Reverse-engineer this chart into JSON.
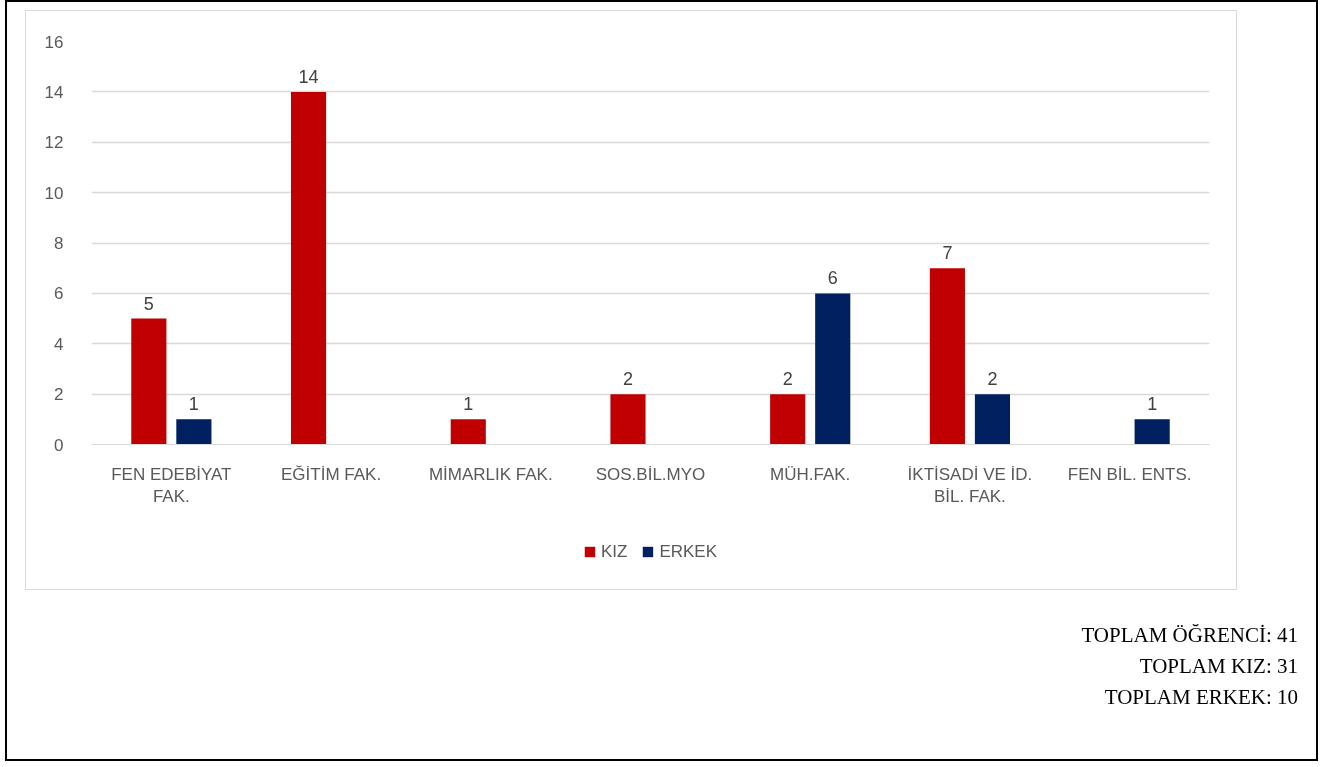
{
  "chart_data": {
    "type": "bar",
    "categories": [
      "FEN EDEBİYAT FAK.",
      "EĞİTİM FAK.",
      "MİMARLIK FAK.",
      "SOS.BİL.MYO",
      "MÜH.FAK.",
      "İKTİSADİ VE İD. BİL. FAK.",
      "FEN BİL. ENTS."
    ],
    "series": [
      {
        "name": "KIZ",
        "color": "#c00000",
        "values": [
          5,
          14,
          1,
          2,
          2,
          7,
          null
        ]
      },
      {
        "name": "ERKEK",
        "color": "#002060",
        "values": [
          1,
          null,
          null,
          null,
          6,
          2,
          1
        ]
      }
    ],
    "ylim": [
      0,
      16
    ],
    "yticks": [
      0,
      2,
      4,
      6,
      8,
      10,
      12,
      14,
      16
    ],
    "grid": "y",
    "legend": "bottom",
    "data_labels": true,
    "annotations": [
      "TOPLAM ÖĞRENCİ: 41",
      "TOPLAM KIZ: 31",
      "TOPLAM ERKEK: 10"
    ]
  }
}
